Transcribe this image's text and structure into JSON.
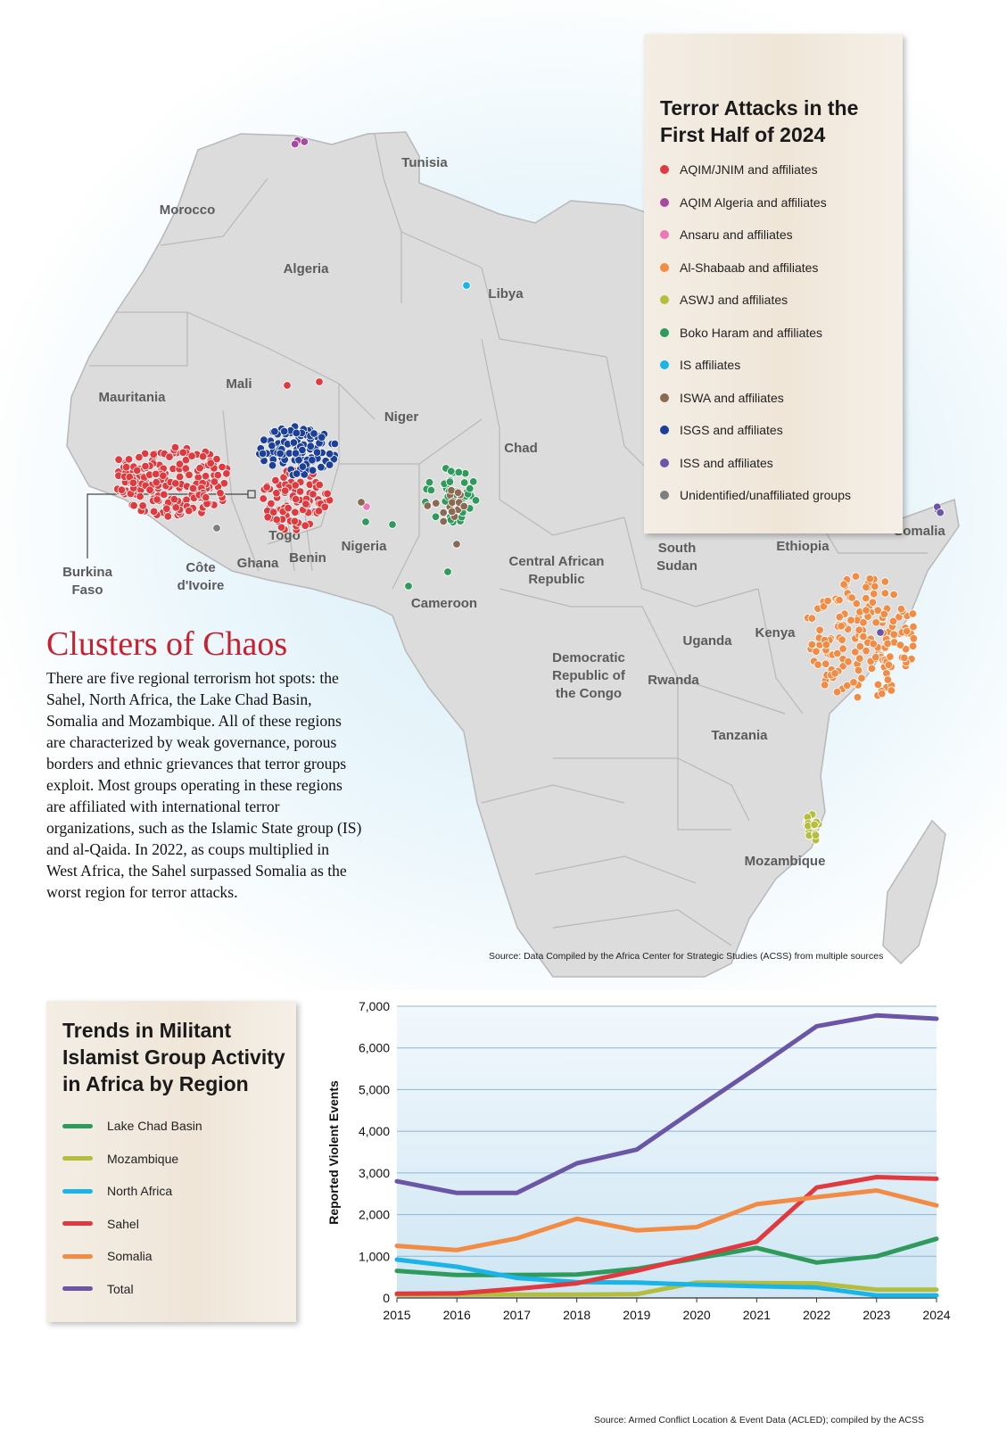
{
  "map": {
    "countries": [
      {
        "name": "Tunisia"
      },
      {
        "name": "Morocco"
      },
      {
        "name": "Algeria"
      },
      {
        "name": "Libya"
      },
      {
        "name": "Mauritania"
      },
      {
        "name": "Mali"
      },
      {
        "name": "Niger"
      },
      {
        "name": "Chad"
      },
      {
        "name": "Nigeria"
      },
      {
        "name": "Côte d'Ivoire",
        "lines": [
          "Côte",
          "d'Ivoire"
        ]
      },
      {
        "name": "Ghana"
      },
      {
        "name": "Togo"
      },
      {
        "name": "Benin"
      },
      {
        "name": "Cameroon"
      },
      {
        "name": "Central African Republic",
        "lines": [
          "Central African",
          "Republic"
        ]
      },
      {
        "name": "South Sudan",
        "lines": [
          "South",
          "Sudan"
        ]
      },
      {
        "name": "Ethiopia"
      },
      {
        "name": "Somalia"
      },
      {
        "name": "Kenya"
      },
      {
        "name": "Uganda"
      },
      {
        "name": "Rwanda"
      },
      {
        "name": "Democratic Republic of the Congo",
        "lines": [
          "Democratic",
          "Republic of",
          "the Congo"
        ]
      },
      {
        "name": "Tanzania"
      },
      {
        "name": "Mozambique"
      }
    ],
    "burkina_label": [
      "Burkina",
      "Faso"
    ],
    "source": "Source: Data Compiled by the Africa Center for Strategic Studies (ACSS) from multiple sources"
  },
  "map_legend": {
    "title_lines": [
      "Terror Attacks in the",
      "First Half of 2024"
    ],
    "items": [
      {
        "label": "AQIM/JNIM and affiliates",
        "color": "#e03a3e"
      },
      {
        "label": "AQIM Algeria and affiliates",
        "color": "#a54a9e"
      },
      {
        "label": "Ansaru and affiliates",
        "color": "#ec77b6"
      },
      {
        "label": "Al-Shabaab and affiliates",
        "color": "#f28c45"
      },
      {
        "label": "ASWJ and affiliates",
        "color": "#b4be3c"
      },
      {
        "label": "Boko Haram and affiliates",
        "color": "#2e9a5c"
      },
      {
        "label": "IS affiliates",
        "color": "#1ab4e8"
      },
      {
        "label": "ISWA and affiliates",
        "color": "#8a6a52"
      },
      {
        "label": "ISGS and affiliates",
        "color": "#1c3f9a"
      },
      {
        "label": "ISS and affiliates",
        "color": "#6a55a6"
      },
      {
        "label": "Unidentified/unaffiliated groups",
        "color": "#7e7e7e"
      }
    ]
  },
  "article": {
    "title": "Clusters of Chaos",
    "body": "There are five regional terrorism hot spots: the Sahel, North Africa, the Lake Chad Basin, Somalia and Mozambique. All of these regions are characterized by weak governance, porous borders and ethnic grievances that terror groups exploit. Most groups operating in these regions are affiliated with international terror organizations, such as the Islamic State group (IS) and al-Qaida. In 2022, as coups multiplied in West Africa, the Sahel surpassed Somalia as the worst region for terror attacks."
  },
  "trend_legend": {
    "title_lines": [
      "Trends in Militant",
      "Islamist Group Activity",
      "in Africa by Region"
    ]
  },
  "chart_data": {
    "type": "line",
    "x": [
      2015,
      2016,
      2017,
      2018,
      2019,
      2020,
      2021,
      2022,
      2023,
      2024
    ],
    "ylabel": "Reported Violent Events",
    "ylim": [
      0,
      7000
    ],
    "yticks": [
      "0",
      "1,000",
      "2,000",
      "3,000",
      "4,000",
      "5,000",
      "6,000",
      "7,000"
    ],
    "grid": true,
    "series": [
      {
        "name": "Lake Chad Basin",
        "color": "#2e9a5c",
        "values": [
          650,
          550,
          550,
          560,
          700,
          950,
          1200,
          850,
          1000,
          1420
        ]
      },
      {
        "name": "Mozambique",
        "color": "#b4be3c",
        "values": [
          80,
          80,
          80,
          80,
          90,
          370,
          360,
          350,
          200,
          200
        ]
      },
      {
        "name": "North Africa",
        "color": "#1ab4e8",
        "values": [
          920,
          750,
          480,
          380,
          370,
          320,
          280,
          250,
          60,
          60
        ]
      },
      {
        "name": "Sahel",
        "color": "#e03a3e",
        "values": [
          100,
          110,
          220,
          350,
          650,
          1000,
          1350,
          2650,
          2900,
          2860
        ]
      },
      {
        "name": "Somalia",
        "color": "#f28c45",
        "values": [
          1250,
          1150,
          1430,
          1900,
          1620,
          1700,
          2250,
          2420,
          2580,
          2220
        ]
      },
      {
        "name": "Total",
        "color": "#6a55a6",
        "values": [
          2800,
          2520,
          2520,
          3230,
          3560,
          4550,
          5520,
          6520,
          6780,
          6700
        ]
      }
    ],
    "source": "Source: Armed Conflict Location & Event Data (ACLED); compiled by the ACSS"
  }
}
